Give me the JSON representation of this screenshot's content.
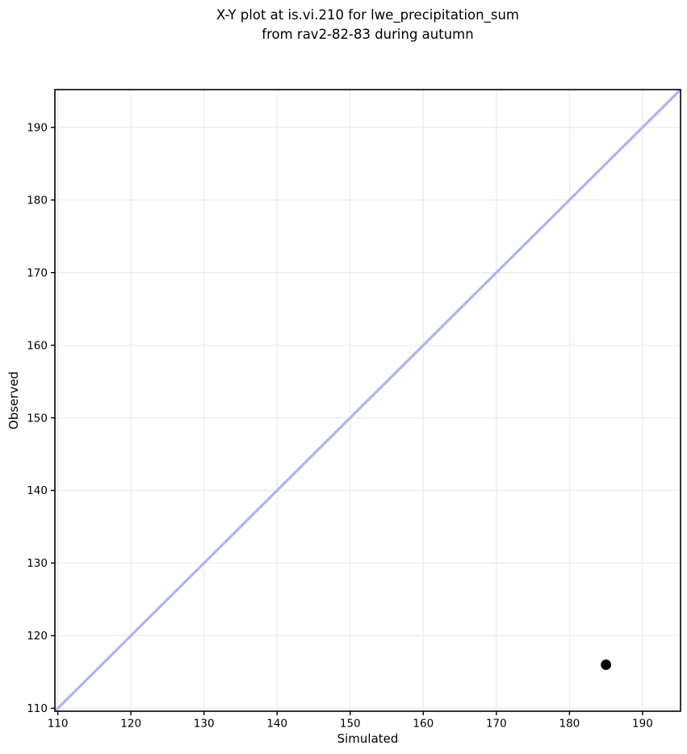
{
  "chart_data": {
    "type": "scatter",
    "title_line1": "X-Y plot at is.vi.210 for lwe_precipitation_sum",
    "title_line2": "from rav2-82-83 during autumn",
    "xlabel": "Simulated",
    "ylabel": "Observed",
    "xlim": [
      109.6,
      195.2
    ],
    "ylim": [
      109.6,
      195.2
    ],
    "xticks": [
      110,
      120,
      130,
      140,
      150,
      160,
      170,
      180,
      190
    ],
    "yticks": [
      110,
      120,
      130,
      140,
      150,
      160,
      170,
      180,
      190
    ],
    "grid": true,
    "legend": "none",
    "series": [
      {
        "name": "observed-vs-simulated-points",
        "points": [
          {
            "x": 185,
            "y": 116
          }
        ]
      }
    ],
    "identity_line": {
      "from": [
        109.6,
        109.6
      ],
      "to": [
        195.2,
        195.2
      ]
    },
    "colors": {
      "point": "#000000",
      "identity_line": "#b1b1f1",
      "grid": "#ebebeb",
      "spine": "#000000",
      "tick": "#000000",
      "background": "#ffffff",
      "text": "#000000"
    }
  }
}
